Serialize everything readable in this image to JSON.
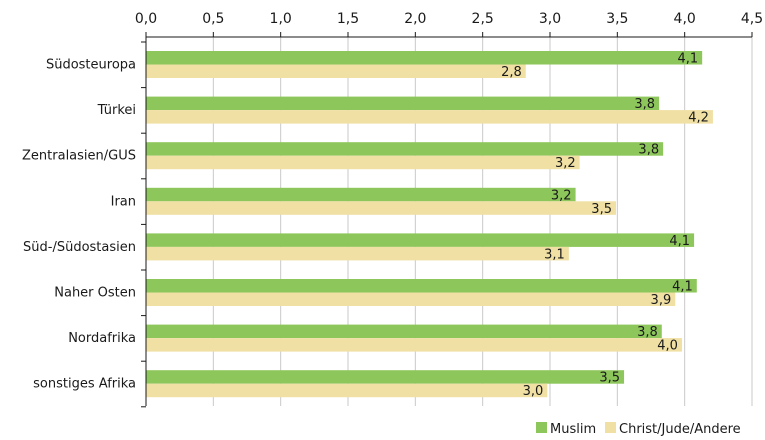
{
  "chart_data": {
    "type": "bar",
    "orientation": "horizontal",
    "categories": [
      "Südosteuropa",
      "Türkei",
      "Zentralasien/GUS",
      "Iran",
      "Süd-/Südostasien",
      "Naher Osten",
      "Nordafrika",
      "sonstiges Afrika"
    ],
    "series": [
      {
        "name": "Muslim",
        "color": "#8dc65a",
        "values": [
          4.13,
          3.81,
          3.84,
          3.19,
          4.07,
          4.09,
          3.83,
          3.55
        ],
        "labels": [
          "4,1",
          "3,8",
          "3,8",
          "3,2",
          "4,1",
          "4,1",
          "3,8",
          "3,5"
        ]
      },
      {
        "name": "Christ/Jude/Andere",
        "color": "#f0e0a4",
        "values": [
          2.82,
          4.21,
          3.22,
          3.49,
          3.14,
          3.93,
          3.98,
          2.98
        ],
        "labels": [
          "2,8",
          "4,2",
          "3,2",
          "3,5",
          "3,1",
          "3,9",
          "4,0",
          "3,0"
        ]
      }
    ],
    "xlim": [
      0,
      4.5
    ],
    "x_ticks": [
      "0,0",
      "0,5",
      "1,0",
      "1,5",
      "2,0",
      "2,5",
      "3,0",
      "3,5",
      "4,0",
      "4,5"
    ],
    "x_axis_position": "top",
    "grid": "vertical",
    "legend": "bottom-right",
    "title": "",
    "xlabel": "",
    "ylabel": ""
  }
}
